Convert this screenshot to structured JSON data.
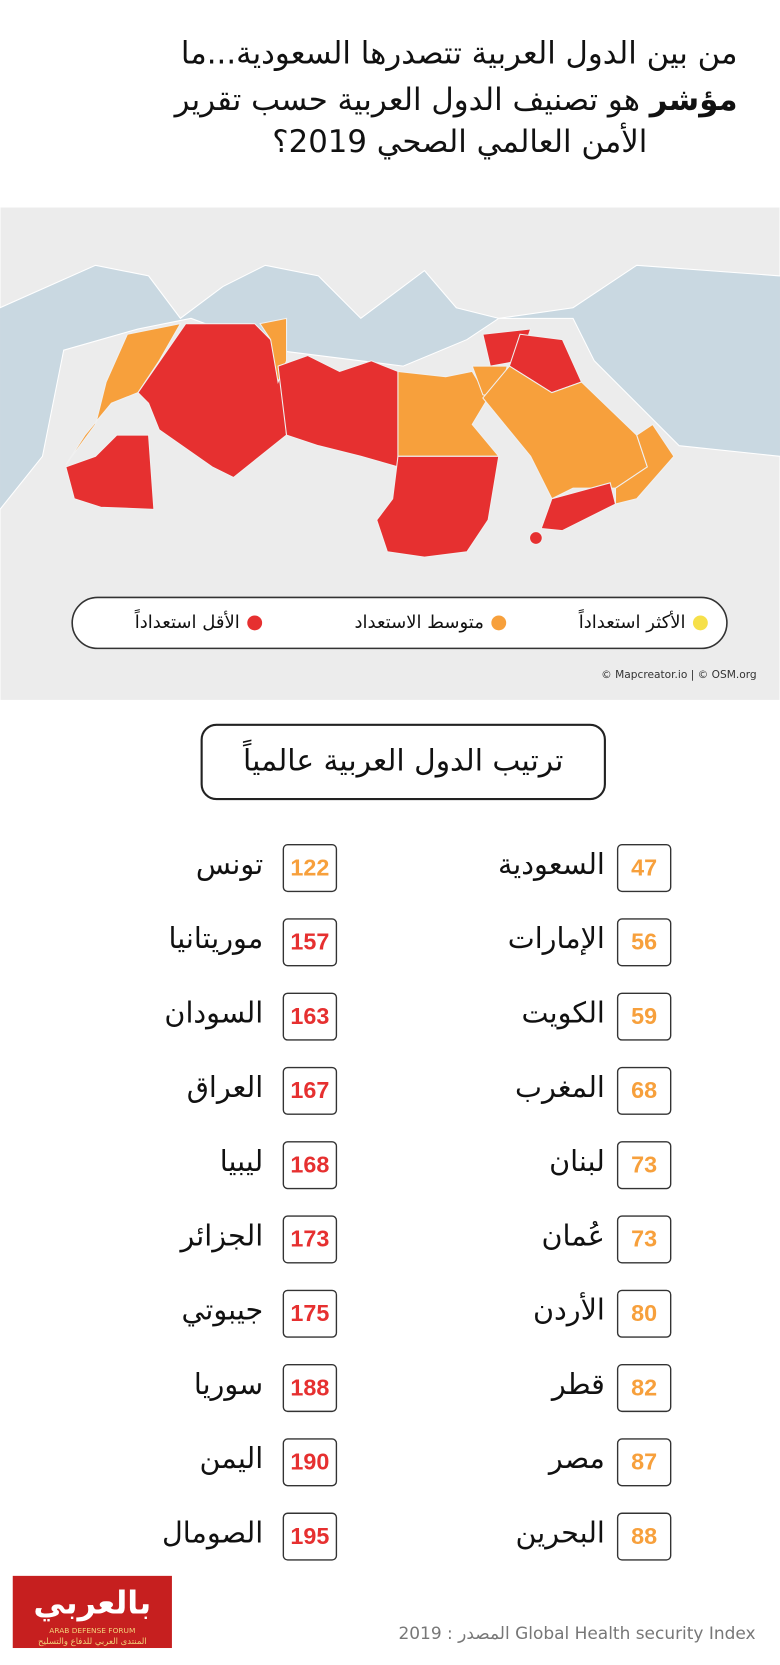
{
  "header": {
    "title_line1": "من بين الدول العربية تتصدرها السعودية...ما",
    "title_line2": "هو تصنيف الدول العربية حسب تقرير",
    "title_line2_bold": "مؤشر",
    "title_line3": "الأمن العالمي الصحي 2019؟"
  },
  "map": {
    "legend": [
      {
        "label": "الأكثر استعداداً",
        "color": "#f6e04a"
      },
      {
        "label": "متوسط الاستعداد",
        "color": "#f7a03c"
      },
      {
        "label": "الأقل استعداداً",
        "color": "#e63030"
      }
    ],
    "attribution": "© Mapcreator.io | © OSM.org"
  },
  "ranking": {
    "title": "ترتيب الدول العربية عالمياً",
    "right_column": [
      {
        "name": "السعودية",
        "rank": 47,
        "color": "#f7a03c"
      },
      {
        "name": "الإمارات",
        "rank": 56,
        "color": "#f7a03c"
      },
      {
        "name": "الكويت",
        "rank": 59,
        "color": "#f7a03c"
      },
      {
        "name": "المغرب",
        "rank": 68,
        "color": "#f7a03c"
      },
      {
        "name": "لبنان",
        "rank": 73,
        "color": "#f7a03c"
      },
      {
        "name": "عُمان",
        "rank": 73,
        "color": "#f7a03c"
      },
      {
        "name": "الأردن",
        "rank": 80,
        "color": "#f7a03c"
      },
      {
        "name": "قطر",
        "rank": 82,
        "color": "#f7a03c"
      },
      {
        "name": "مصر",
        "rank": 87,
        "color": "#f7a03c"
      },
      {
        "name": "البحرين",
        "rank": 88,
        "color": "#f7a03c"
      }
    ],
    "left_column": [
      {
        "name": "تونس",
        "rank": 122,
        "color": "#f7a03c"
      },
      {
        "name": "موريتانيا",
        "rank": 157,
        "color": "#e63030"
      },
      {
        "name": "السودان",
        "rank": 163,
        "color": "#e63030"
      },
      {
        "name": "العراق",
        "rank": 167,
        "color": "#e63030"
      },
      {
        "name": "ليبيا",
        "rank": 168,
        "color": "#e63030"
      },
      {
        "name": "الجزائر",
        "rank": 173,
        "color": "#e63030"
      },
      {
        "name": "جيبوتي",
        "rank": 175,
        "color": "#e63030"
      },
      {
        "name": "سوريا",
        "rank": 188,
        "color": "#e63030"
      },
      {
        "name": "اليمن",
        "rank": 190,
        "color": "#e63030"
      },
      {
        "name": "الصومال",
        "rank": 195,
        "color": "#e63030"
      }
    ]
  },
  "footer": {
    "source": "المصدر : 2019 Global Health security Index",
    "logo": "بالعربي",
    "logo_en": "ARAB DEFENSE FORUM",
    "logo_ar": "المنتدى العربي للدفاع والتسليح"
  }
}
